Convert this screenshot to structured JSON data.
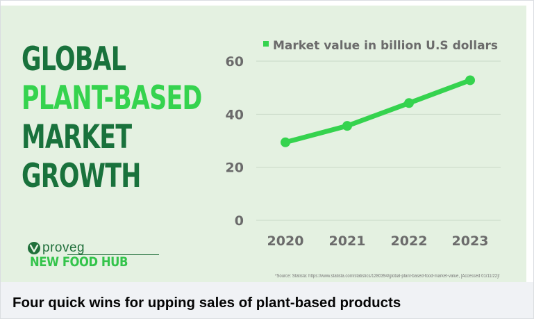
{
  "headline": {
    "line1": "GLOBAL",
    "line2": "PLANT-BASED",
    "line3": "MARKET",
    "line4": "GROWTH"
  },
  "logo": {
    "wordmark": "proveg",
    "hub": "NEW FOOD HUB"
  },
  "chart_data": {
    "type": "line",
    "x": [
      "2020",
      "2021",
      "2022",
      "2023"
    ],
    "series": [
      {
        "name": "Market value in billion U.S dollars",
        "values": [
          29.4,
          35.6,
          44.2,
          52.8
        ],
        "color": "#35d34e"
      }
    ],
    "ylim": [
      0,
      60
    ],
    "yticks": [
      0,
      20,
      40,
      60
    ],
    "grid": true,
    "legend": "top"
  },
  "source": "*Source: Statista: https://www.statista.com/statistics/1280394/global-plant-based-food-market-value, [Accessed 01/11/22]/",
  "caption": "Four quick wins for upping sales of plant-based products",
  "colors": {
    "dark_green": "#19723c",
    "light_green": "#35d34e",
    "background": "#e4f1e1"
  }
}
